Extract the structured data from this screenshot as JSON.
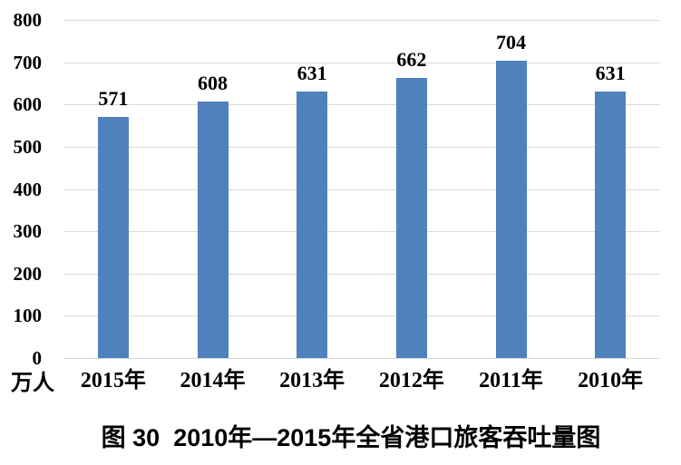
{
  "chart_data": {
    "type": "bar",
    "categories": [
      "2015年",
      "2014年",
      "2013年",
      "2012年",
      "2011年",
      "2010年"
    ],
    "values": [
      571,
      608,
      631,
      662,
      704,
      631
    ],
    "title": "图 30  2010年—2015年全省港口旅客吞吐量图",
    "xlabel": "",
    "ylabel": "万人",
    "unit_label": "万人",
    "ylim": [
      0,
      800
    ],
    "yticks": [
      0,
      100,
      200,
      300,
      400,
      500,
      600,
      700,
      800
    ],
    "grid": true,
    "legend": "none",
    "bar_color": "#4f81bd",
    "gridline_color": "#d9d9d9",
    "text_color": "#000000"
  }
}
